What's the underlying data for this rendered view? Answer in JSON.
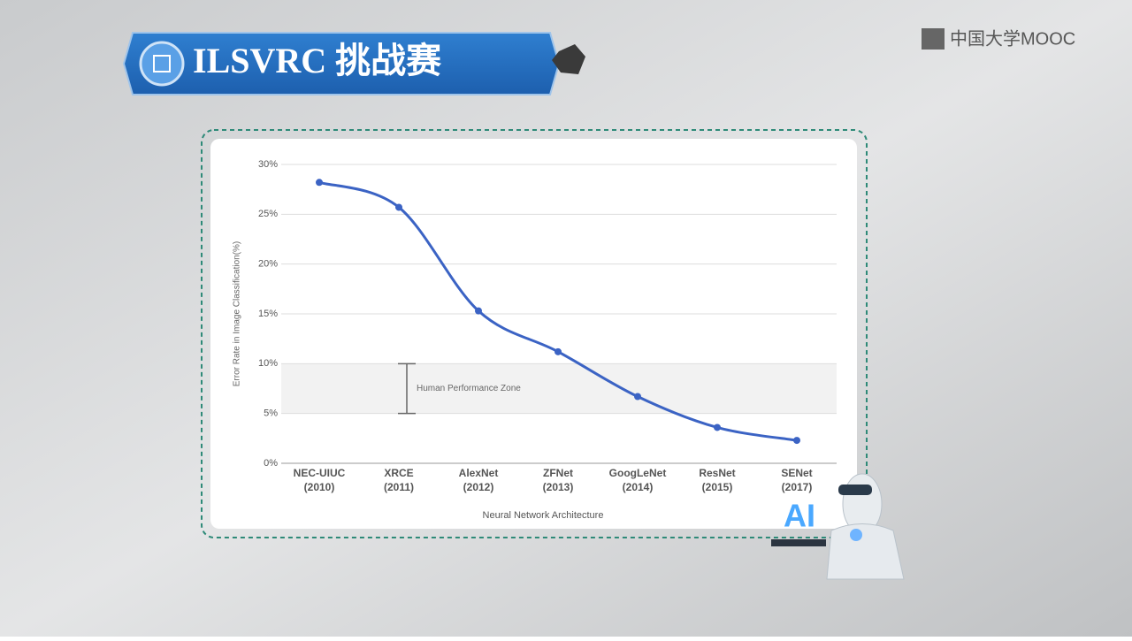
{
  "header": {
    "title": "ILSVRC 挑战赛",
    "logo": "中国大学MOOC"
  },
  "illustration": {
    "text": "AI"
  },
  "chart_data": {
    "type": "line",
    "y_label": "Error Rate in Image Classification(%)",
    "x_label": "Neural Network Architecture",
    "categories": [
      "NEC-UIUC\n(2010)",
      "XRCE\n(2011)",
      "AlexNet\n(2012)",
      "ZFNet\n(2013)",
      "GoogLeNet\n(2014)",
      "ResNet\n(2015)",
      "SENet\n(2017)"
    ],
    "values": [
      28.2,
      25.7,
      15.3,
      11.2,
      6.7,
      3.6,
      2.3
    ],
    "color": "#3b63c4",
    "ylim": [
      0,
      30
    ],
    "yticks": [
      {
        "value": 0,
        "label": "0%"
      },
      {
        "value": 5,
        "label": "5%"
      },
      {
        "value": 10,
        "label": "10%"
      },
      {
        "value": 15,
        "label": "15%"
      },
      {
        "value": 20,
        "label": "20%"
      },
      {
        "value": 25,
        "label": "25%"
      },
      {
        "value": 30,
        "label": "30%"
      }
    ],
    "grid": true,
    "human_zone": {
      "range": [
        5,
        10
      ],
      "label": "Human Performance Zone"
    }
  }
}
